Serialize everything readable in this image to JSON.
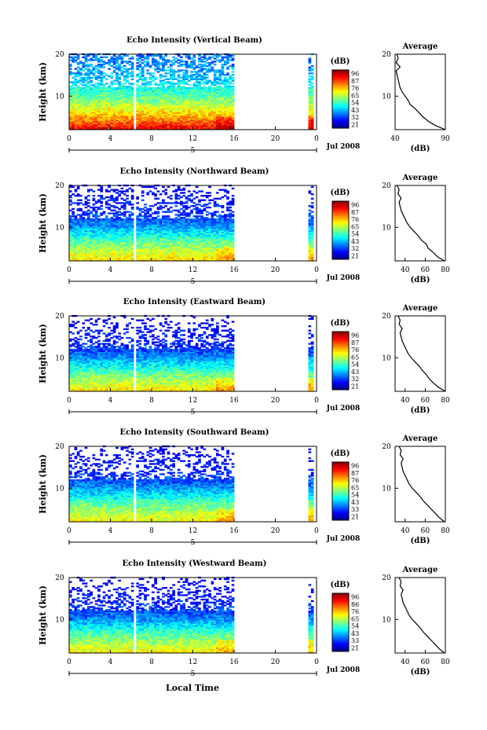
{
  "figure": {
    "common_xlabel": "Local Time",
    "date_label": "Jul 2008",
    "day_label": "5"
  },
  "chart_data": [
    {
      "type": "heatmap",
      "title": "Echo Intensity (Vertical Beam)",
      "xlabel": "",
      "ylabel": "Height (km)",
      "x_ticks": [
        "0",
        "4",
        "8",
        "12",
        "16",
        "20",
        "0"
      ],
      "y_ticks": [
        "20",
        "10"
      ],
      "xlim": [
        0,
        24
      ],
      "ylim": [
        2,
        20
      ],
      "data_until_hour": 16,
      "last_slice_hour": 23.6,
      "colorbar": {
        "title": "(dB)",
        "ticks": [
          "96",
          "87",
          "76",
          "65",
          "54",
          "43",
          "32",
          "21"
        ],
        "range": [
          21,
          96
        ]
      },
      "profile_by_height_dB": {
        "heights": [
          2,
          4,
          6,
          8,
          10,
          12,
          14,
          16,
          18,
          20
        ],
        "values": [
          88,
          78,
          70,
          62,
          56,
          50,
          45,
          42,
          40,
          38
        ]
      },
      "average_profile": {
        "title": "Average",
        "xlabel": "(dB)",
        "x_ticks": [
          "40",
          "90"
        ],
        "xlim": [
          40,
          90
        ],
        "y_ticks": [
          "20",
          "10"
        ],
        "ylim": [
          2,
          20
        ],
        "heights": [
          2,
          3,
          4,
          5,
          6,
          7,
          8,
          9,
          10,
          11,
          12,
          13,
          14,
          15,
          16,
          17,
          18,
          19,
          20
        ],
        "values": [
          90,
          80,
          73,
          68,
          64,
          60,
          55,
          53,
          50,
          47,
          45,
          44,
          43,
          42,
          41,
          45,
          41,
          43,
          42
        ]
      }
    },
    {
      "type": "heatmap",
      "title": "Echo Intensity (Northward Beam)",
      "xlabel": "",
      "ylabel": "Height (km)",
      "x_ticks": [
        "0",
        "4",
        "8",
        "12",
        "16",
        "20",
        "0"
      ],
      "y_ticks": [
        "20",
        "10"
      ],
      "xlim": [
        0,
        24
      ],
      "ylim": [
        2,
        20
      ],
      "data_until_hour": 16,
      "last_slice_hour": 23.6,
      "colorbar": {
        "title": "(dB)",
        "ticks": [
          "96",
          "87",
          "76",
          "65",
          "54",
          "43",
          "32",
          "21"
        ],
        "range": [
          21,
          96
        ]
      },
      "profile_by_height_dB": {
        "heights": [
          2,
          4,
          6,
          8,
          10,
          12,
          14,
          16,
          18,
          20
        ],
        "values": [
          70,
          64,
          58,
          50,
          42,
          36,
          32,
          30,
          28,
          26
        ]
      },
      "average_profile": {
        "title": "Average",
        "xlabel": "(dB)",
        "x_ticks": [
          "40",
          "60",
          "80"
        ],
        "xlim": [
          30,
          80
        ],
        "y_ticks": [
          "20",
          "10"
        ],
        "ylim": [
          2,
          20
        ],
        "heights": [
          2,
          3,
          4,
          5,
          6,
          7,
          8,
          9,
          10,
          11,
          12,
          13,
          14,
          15,
          16,
          17,
          18,
          19,
          20
        ],
        "values": [
          79,
          72,
          68,
          63,
          61,
          56,
          53,
          49,
          45,
          42,
          40,
          38,
          36,
          35,
          34,
          36,
          33,
          34,
          32
        ]
      }
    },
    {
      "type": "heatmap",
      "title": "Echo Intensity (Eastward Beam)",
      "xlabel": "",
      "ylabel": "Height (km)",
      "x_ticks": [
        "0",
        "4",
        "8",
        "12",
        "16",
        "20",
        "0"
      ],
      "y_ticks": [
        "20",
        "10"
      ],
      "xlim": [
        0,
        24
      ],
      "ylim": [
        2,
        20
      ],
      "data_until_hour": 16,
      "last_slice_hour": 23.6,
      "colorbar": {
        "title": "(dB)",
        "ticks": [
          "96",
          "87",
          "76",
          "65",
          "54",
          "43",
          "32",
          "21"
        ],
        "range": [
          21,
          96
        ]
      },
      "profile_by_height_dB": {
        "heights": [
          2,
          4,
          6,
          8,
          10,
          12,
          14,
          16,
          18,
          20
        ],
        "values": [
          70,
          63,
          57,
          49,
          41,
          35,
          31,
          29,
          27,
          25
        ]
      },
      "average_profile": {
        "title": "Average",
        "xlabel": "(dB)",
        "x_ticks": [
          "40",
          "60",
          "80"
        ],
        "xlim": [
          30,
          80
        ],
        "y_ticks": [
          "20",
          "10"
        ],
        "ylim": [
          2,
          20
        ],
        "heights": [
          2,
          3,
          4,
          5,
          6,
          7,
          8,
          9,
          10,
          11,
          12,
          13,
          14,
          15,
          16,
          17,
          18,
          19,
          20
        ],
        "values": [
          80,
          73,
          68,
          64,
          61,
          57,
          54,
          50,
          46,
          43,
          41,
          39,
          37,
          36,
          35,
          37,
          34,
          35,
          33
        ]
      }
    },
    {
      "type": "heatmap",
      "title": "Echo Intensity (Southward Beam)",
      "xlabel": "",
      "ylabel": "Height (km)",
      "x_ticks": [
        "0",
        "4",
        "8",
        "12",
        "16",
        "20",
        "0"
      ],
      "y_ticks": [
        "20",
        "10"
      ],
      "xlim": [
        0,
        24
      ],
      "ylim": [
        2,
        20
      ],
      "data_until_hour": 16,
      "last_slice_hour": 23.6,
      "colorbar": {
        "title": "(dB)",
        "ticks": [
          "96",
          "87",
          "76",
          "65",
          "54",
          "43",
          "33",
          "21"
        ],
        "range": [
          21,
          96
        ]
      },
      "profile_by_height_dB": {
        "heights": [
          2,
          4,
          6,
          8,
          10,
          12,
          14,
          16,
          18,
          20
        ],
        "values": [
          68,
          62,
          57,
          49,
          41,
          35,
          31,
          29,
          27,
          25
        ]
      },
      "average_profile": {
        "title": "Average",
        "xlabel": "(dB)",
        "x_ticks": [
          "40",
          "60",
          "80"
        ],
        "xlim": [
          30,
          80
        ],
        "y_ticks": [
          "20",
          "10"
        ],
        "ylim": [
          2,
          20
        ],
        "heights": [
          2,
          3,
          4,
          5,
          6,
          7,
          8,
          9,
          10,
          11,
          12,
          13,
          14,
          15,
          16,
          17,
          18,
          19,
          20
        ],
        "values": [
          79,
          74,
          70,
          66,
          62,
          58,
          55,
          51,
          47,
          44,
          42,
          40,
          38,
          37,
          36,
          38,
          35,
          36,
          34
        ]
      }
    },
    {
      "type": "heatmap",
      "title": "Echo Intensity (Westward Beam)",
      "xlabel": "Local Time",
      "ylabel": "Height (km)",
      "x_ticks": [
        "0",
        "4",
        "8",
        "12",
        "16",
        "20",
        "0"
      ],
      "y_ticks": [
        "20",
        "10"
      ],
      "xlim": [
        0,
        24
      ],
      "ylim": [
        2,
        20
      ],
      "data_until_hour": 16,
      "last_slice_hour": 23.6,
      "colorbar": {
        "title": "(dB)",
        "ticks": [
          "96",
          "86",
          "76",
          "65",
          "54",
          "43",
          "33",
          "21"
        ],
        "range": [
          21,
          96
        ]
      },
      "profile_by_height_dB": {
        "heights": [
          2,
          4,
          6,
          8,
          10,
          12,
          14,
          16,
          18,
          20
        ],
        "values": [
          69,
          62,
          57,
          49,
          41,
          35,
          31,
          29,
          27,
          25
        ]
      },
      "average_profile": {
        "title": "Average",
        "xlabel": "(dB)",
        "x_ticks": [
          "40",
          "60",
          "80"
        ],
        "xlim": [
          30,
          80
        ],
        "y_ticks": [
          "20",
          "10"
        ],
        "ylim": [
          2,
          20
        ],
        "heights": [
          2,
          3,
          4,
          5,
          6,
          7,
          8,
          9,
          10,
          11,
          12,
          13,
          14,
          15,
          16,
          17,
          18,
          19,
          20
        ],
        "values": [
          79,
          74,
          70,
          66,
          62,
          58,
          55,
          51,
          47,
          44,
          42,
          40,
          38,
          37,
          36,
          38,
          35,
          36,
          34
        ]
      }
    }
  ]
}
